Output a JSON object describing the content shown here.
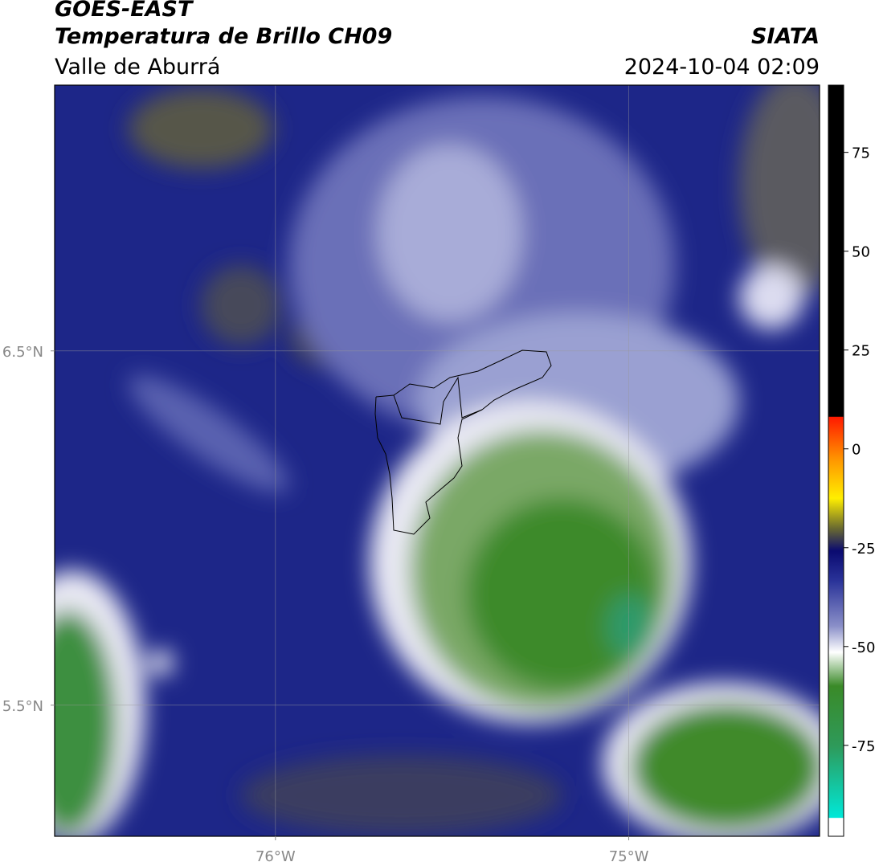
{
  "chart_data": {
    "type": "map",
    "title": "GOES-EAST",
    "subtitle": "Temperatura de Brillo CH09",
    "region": "Valle de Aburrá",
    "source": "SIATA",
    "timestamp": "2024-10-04 02:09",
    "xlim": [
      -76.625,
      -74.46
    ],
    "xticks": [
      {
        "value": -76,
        "label": "76°W"
      },
      {
        "value": -75,
        "label": "75°W"
      }
    ],
    "ylim": [
      5.13,
      7.25
    ],
    "yticks": [
      {
        "value": 6.5,
        "label": "6.5°N"
      },
      {
        "value": 5.5,
        "label": "5.5°N"
      }
    ],
    "grid": true,
    "colorbar": {
      "lim": [
        -98,
        92
      ],
      "ticks": [
        75,
        50,
        25,
        0,
        -25,
        -50,
        -75
      ]
    }
  }
}
